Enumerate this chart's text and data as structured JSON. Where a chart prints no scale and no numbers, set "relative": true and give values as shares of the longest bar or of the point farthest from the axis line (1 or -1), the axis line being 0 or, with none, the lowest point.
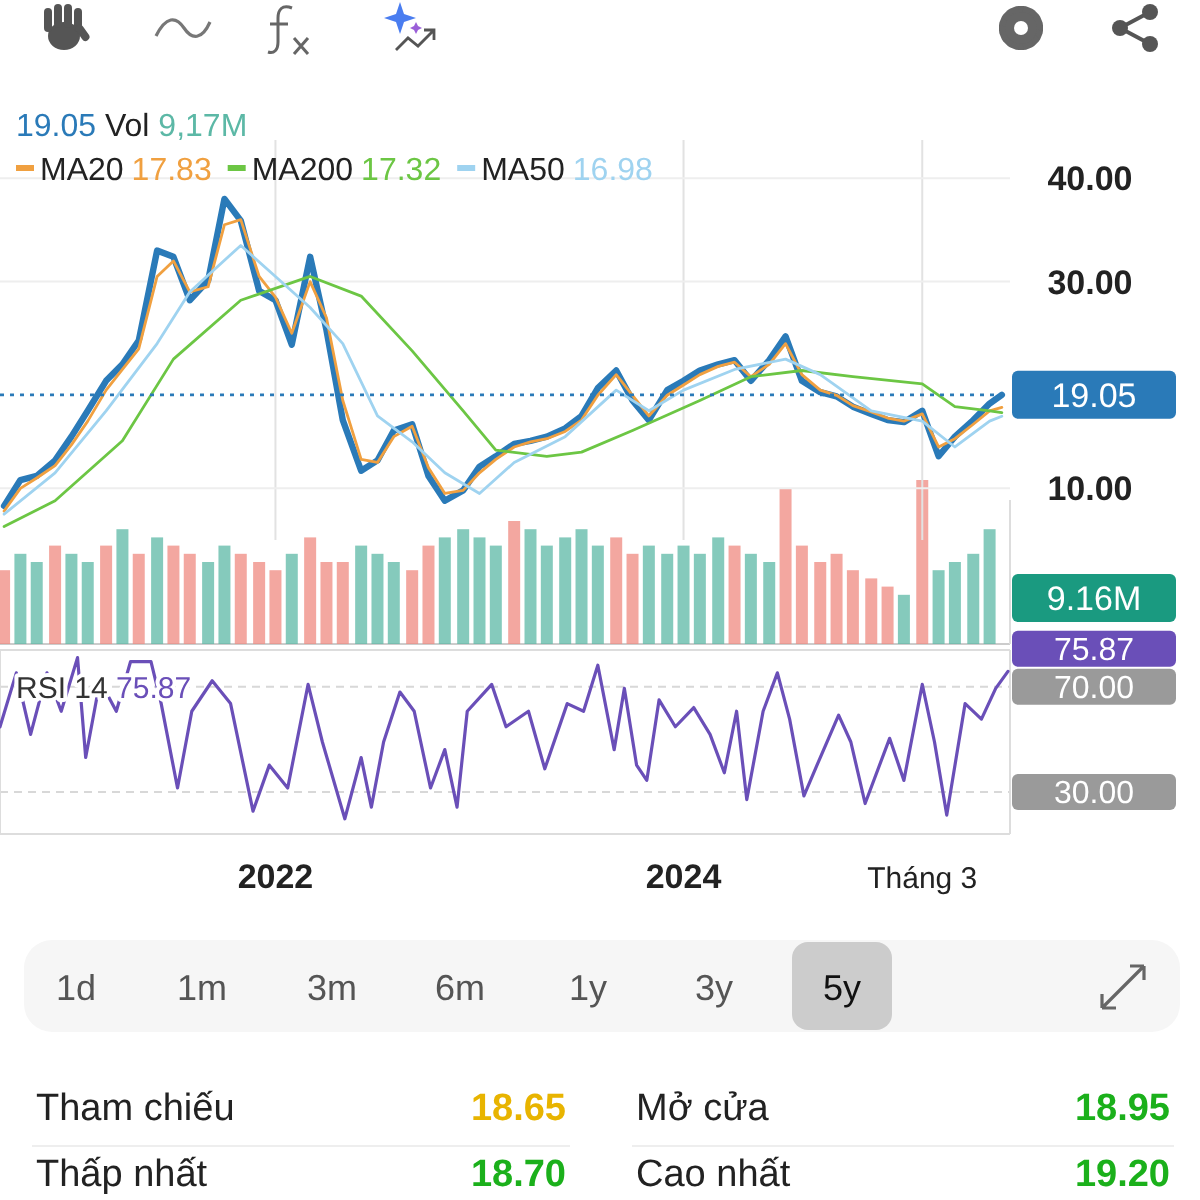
{
  "chart_data": [
    {
      "type": "line",
      "xlim": [
        2020.65,
        2025.6
      ],
      "ylim": [
        5,
        43.7
      ],
      "xticks": [
        {
          "value": 2022,
          "label": null
        },
        {
          "value": 2024,
          "label": null
        },
        {
          "value": 2025.17,
          "label": null
        }
      ],
      "yticks": [
        {
          "value": 10,
          "label": "10.00"
        },
        {
          "value": 30,
          "label": "30.00"
        },
        {
          "value": 40,
          "label": "40.00"
        }
      ],
      "tick_labels": "y",
      "grid": true,
      "legend": "top",
      "annotations": [
        "19.05",
        "Vol",
        "9,17M",
        "17.83",
        "17.32",
        "16.98"
      ],
      "ref_lines": [
        {
          "axis": "y",
          "value": 19.05,
          "label": "19.05",
          "color": "#2a7ab8",
          "line_style": "dotted"
        }
      ],
      "series": [
        {
          "color": "#2a7ab8",
          "x": [
            2020.67,
            2020.75,
            2020.83,
            2020.92,
            2021.0,
            2021.08,
            2021.17,
            2021.25,
            2021.33,
            2021.42,
            2021.5,
            2021.58,
            2021.67,
            2021.75,
            2021.83,
            2021.92,
            2022.0,
            2022.08,
            2022.17,
            2022.25,
            2022.33,
            2022.42,
            2022.5,
            2022.58,
            2022.67,
            2022.75,
            2022.83,
            2022.92,
            2023.0,
            2023.08,
            2023.17,
            2023.25,
            2023.33,
            2023.42,
            2023.5,
            2023.58,
            2023.67,
            2023.75,
            2023.83,
            2023.92,
            2024.0,
            2024.08,
            2024.17,
            2024.25,
            2024.33,
            2024.42,
            2024.5,
            2024.58,
            2024.67,
            2024.75,
            2024.83,
            2024.92,
            2025.0,
            2025.08,
            2025.17,
            2025.25,
            2025.33,
            2025.42,
            2025.5,
            2025.56
          ],
          "values": [
            8.3,
            10.8,
            11.2,
            12.7,
            15.0,
            17.5,
            20.4,
            22.0,
            24.3,
            33.0,
            32.4,
            28.2,
            30.1,
            38.0,
            35.9,
            29.1,
            28.2,
            23.9,
            32.4,
            25.3,
            16.6,
            11.7,
            12.7,
            15.6,
            16.2,
            11.2,
            8.8,
            9.8,
            12.1,
            13.1,
            14.3,
            14.6,
            15.0,
            15.8,
            17.0,
            19.7,
            21.4,
            18.5,
            16.6,
            19.5,
            20.4,
            21.4,
            22.0,
            22.4,
            20.4,
            22.4,
            24.7,
            20.4,
            19.3,
            18.9,
            17.9,
            17.2,
            16.6,
            16.4,
            17.5,
            13.1,
            15.0,
            16.6,
            18.2,
            19.05
          ]
        },
        {
          "name": "MA20",
          "color": "#f0a040",
          "x": [
            2020.67,
            2020.75,
            2020.83,
            2020.92,
            2021.0,
            2021.08,
            2021.17,
            2021.25,
            2021.33,
            2021.42,
            2021.5,
            2021.58,
            2021.67,
            2021.75,
            2021.83,
            2021.92,
            2022.0,
            2022.08,
            2022.17,
            2022.25,
            2022.33,
            2022.42,
            2022.5,
            2022.58,
            2022.67,
            2022.75,
            2022.83,
            2022.92,
            2023.0,
            2023.08,
            2023.17,
            2023.25,
            2023.33,
            2023.42,
            2023.5,
            2023.58,
            2023.67,
            2023.75,
            2023.83,
            2023.92,
            2024.0,
            2024.08,
            2024.17,
            2024.25,
            2024.33,
            2024.42,
            2024.5,
            2024.58,
            2024.67,
            2024.75,
            2024.83,
            2024.92,
            2025.0,
            2025.08,
            2025.17,
            2025.25,
            2025.33,
            2025.42,
            2025.5,
            2025.56
          ],
          "values": [
            7.8,
            10.0,
            11.0,
            12.2,
            14.2,
            16.5,
            19.5,
            21.5,
            23.5,
            30.5,
            32.0,
            29.0,
            29.5,
            35.5,
            36.0,
            30.5,
            28.5,
            25.0,
            30.0,
            26.5,
            18.5,
            12.8,
            12.5,
            15.0,
            16.0,
            12.0,
            9.5,
            9.8,
            11.5,
            12.8,
            14.0,
            14.5,
            14.8,
            15.5,
            16.6,
            19.0,
            21.0,
            19.0,
            17.0,
            19.0,
            20.0,
            21.0,
            21.8,
            22.2,
            20.8,
            22.0,
            24.0,
            21.0,
            19.5,
            19.0,
            18.0,
            17.4,
            16.8,
            16.5,
            17.2,
            14.0,
            14.8,
            16.2,
            17.5,
            17.83
          ]
        },
        {
          "name": "MA200",
          "color": "#6cc644",
          "x": [
            2020.67,
            2020.92,
            2021.25,
            2021.5,
            2021.83,
            2022.17,
            2022.42,
            2022.67,
            2022.92,
            2023.08,
            2023.33,
            2023.5,
            2023.75,
            2024.08,
            2024.33,
            2024.58,
            2024.83,
            2025.17,
            2025.33,
            2025.5,
            2025.56
          ],
          "values": [
            6.3,
            8.8,
            14.6,
            22.5,
            28.2,
            30.5,
            28.6,
            23.3,
            17.5,
            13.7,
            13.1,
            13.5,
            15.6,
            18.5,
            20.8,
            21.4,
            20.8,
            20.1,
            17.9,
            17.5,
            17.32
          ]
        },
        {
          "name": "MA50",
          "color": "#9fd3f0",
          "x": [
            2020.67,
            2020.92,
            2021.17,
            2021.42,
            2021.58,
            2021.83,
            2022.0,
            2022.17,
            2022.33,
            2022.5,
            2022.67,
            2022.83,
            2023.0,
            2023.17,
            2023.42,
            2023.67,
            2023.83,
            2024.0,
            2024.25,
            2024.5,
            2024.67,
            2024.92,
            2025.17,
            2025.33,
            2025.5,
            2025.56
          ],
          "values": [
            7.5,
            11.5,
            17.5,
            24,
            29,
            33.5,
            30.5,
            27.5,
            24,
            17,
            14.5,
            11.5,
            9.5,
            12.5,
            15,
            19.5,
            17.5,
            19.5,
            21.5,
            22.5,
            21,
            17.5,
            16.5,
            14,
            16.5,
            16.98
          ]
        }
      ]
    },
    {
      "type": "bar",
      "relative": true,
      "xlim": [
        2020.65,
        2025.6
      ],
      "tick_labels": false,
      "annotations": [
        "9.16M"
      ],
      "x": [
        2020.67,
        2020.75,
        2020.83,
        2020.92,
        2021.0,
        2021.08,
        2021.17,
        2021.25,
        2021.33,
        2021.42,
        2021.5,
        2021.58,
        2021.67,
        2021.75,
        2021.83,
        2021.92,
        2022.0,
        2022.08,
        2022.17,
        2022.25,
        2022.33,
        2022.42,
        2022.5,
        2022.58,
        2022.67,
        2022.75,
        2022.83,
        2022.92,
        2023.0,
        2023.08,
        2023.17,
        2023.25,
        2023.33,
        2023.42,
        2023.5,
        2023.58,
        2023.67,
        2023.75,
        2023.83,
        2023.92,
        2024.0,
        2024.08,
        2024.17,
        2024.25,
        2024.33,
        2024.42,
        2024.5,
        2024.58,
        2024.67,
        2024.75,
        2024.83,
        2024.92,
        2025.0,
        2025.08,
        2025.17,
        2025.25,
        2025.33,
        2025.42,
        2025.5
      ],
      "values": [
        0.45,
        0.55,
        0.5,
        0.6,
        0.55,
        0.5,
        0.6,
        0.7,
        0.55,
        0.65,
        0.6,
        0.55,
        0.5,
        0.6,
        0.55,
        0.5,
        0.45,
        0.55,
        0.65,
        0.5,
        0.5,
        0.6,
        0.55,
        0.5,
        0.45,
        0.6,
        0.65,
        0.7,
        0.65,
        0.6,
        0.75,
        0.7,
        0.6,
        0.65,
        0.7,
        0.6,
        0.65,
        0.55,
        0.6,
        0.55,
        0.6,
        0.55,
        0.65,
        0.6,
        0.55,
        0.5,
        0.95,
        0.6,
        0.5,
        0.55,
        0.45,
        0.4,
        0.35,
        0.3,
        1.0,
        0.45,
        0.5,
        0.55,
        0.7
      ],
      "colors": [
        "#ef8a80",
        "#5cb8a6",
        "#5cb8a6",
        "#ef8a80",
        "#5cb8a6",
        "#5cb8a6",
        "#ef8a80",
        "#5cb8a6",
        "#ef8a80",
        "#5cb8a6",
        "#ef8a80",
        "#ef8a80",
        "#5cb8a6",
        "#5cb8a6",
        "#ef8a80",
        "#ef8a80",
        "#ef8a80",
        "#5cb8a6",
        "#ef8a80",
        "#ef8a80",
        "#ef8a80",
        "#5cb8a6",
        "#5cb8a6",
        "#5cb8a6",
        "#ef8a80",
        "#ef8a80",
        "#5cb8a6",
        "#5cb8a6",
        "#5cb8a6",
        "#5cb8a6",
        "#ef8a80",
        "#5cb8a6",
        "#5cb8a6",
        "#5cb8a6",
        "#5cb8a6",
        "#5cb8a6",
        "#ef8a80",
        "#ef8a80",
        "#5cb8a6",
        "#5cb8a6",
        "#5cb8a6",
        "#5cb8a6",
        "#5cb8a6",
        "#ef8a80",
        "#5cb8a6",
        "#5cb8a6",
        "#ef8a80",
        "#ef8a80",
        "#ef8a80",
        "#ef8a80",
        "#ef8a80",
        "#ef8a80",
        "#ef8a80",
        "#5cb8a6",
        "#ef8a80",
        "#5cb8a6",
        "#5cb8a6",
        "#5cb8a6",
        "#5cb8a6"
      ]
    },
    {
      "type": "line",
      "title": "RSI 14",
      "xlim": [
        2020.65,
        2025.6
      ],
      "ylim": [
        14,
        84
      ],
      "xticks": [
        2022,
        2024,
        {
          "value": 2025.17,
          "label": "Tháng 3"
        }
      ],
      "yticks": [
        {
          "value": 70,
          "label": "70.00"
        },
        {
          "value": 30,
          "label": "30.00"
        }
      ],
      "grid": "y",
      "annotations": [
        "75.87",
        "75.87"
      ],
      "series": [
        {
          "color": "#6a4fb8",
          "x": [
            2020.65,
            2020.73,
            2020.8,
            2020.88,
            2020.95,
            2021.03,
            2021.07,
            2021.14,
            2021.22,
            2021.29,
            2021.39,
            2021.44,
            2021.52,
            2021.59,
            2021.69,
            2021.78,
            2021.89,
            2021.97,
            2022.06,
            2022.16,
            2022.23,
            2022.34,
            2022.42,
            2022.47,
            2022.53,
            2022.61,
            2022.68,
            2022.76,
            2022.83,
            2022.89,
            2022.94,
            2023.06,
            2023.13,
            2023.24,
            2023.32,
            2023.43,
            2023.51,
            2023.58,
            2023.66,
            2023.71,
            2023.77,
            2023.82,
            2023.88,
            2023.96,
            2024.05,
            2024.13,
            2024.2,
            2024.26,
            2024.31,
            2024.39,
            2024.46,
            2024.52,
            2024.59,
            2024.67,
            2024.76,
            2024.82,
            2024.89,
            2025.01,
            2025.08,
            2025.17,
            2025.23,
            2025.29,
            2025.38,
            2025.46,
            2025.53,
            2025.59
          ],
          "values": [
            54.8,
            75.3,
            51.9,
            75.3,
            60.7,
            81.1,
            43.1,
            72.3,
            60.7,
            79.6,
            79.6,
            63.6,
            31.5,
            60.7,
            72.3,
            63.6,
            22.7,
            40.2,
            31.5,
            70.9,
            49.0,
            19.8,
            43.1,
            24.2,
            49.0,
            68.0,
            60.7,
            31.5,
            46.1,
            24.2,
            60.7,
            70.9,
            54.8,
            60.7,
            38.8,
            63.6,
            60.7,
            78.2,
            46.1,
            69.4,
            40.2,
            34.4,
            65.0,
            54.8,
            62.1,
            51.9,
            37.3,
            60.7,
            27.1,
            60.7,
            75.3,
            57.7,
            28.5,
            43.1,
            59.2,
            49.0,
            25.6,
            50.4,
            34.4,
            70.9,
            49.0,
            21.2,
            63.6,
            57.7,
            69.4,
            75.87
          ]
        }
      ]
    },
    {
      "type": "other",
      "annotations": [
        "1d",
        "1m",
        "3m",
        "6m",
        "1y",
        "3y",
        "5y",
        "Tham chiếu",
        "18.65",
        "Mở cửa",
        "18.95",
        "Thấp nhất",
        "18.70",
        "Cao nhất",
        "19.20"
      ]
    }
  ]
}
